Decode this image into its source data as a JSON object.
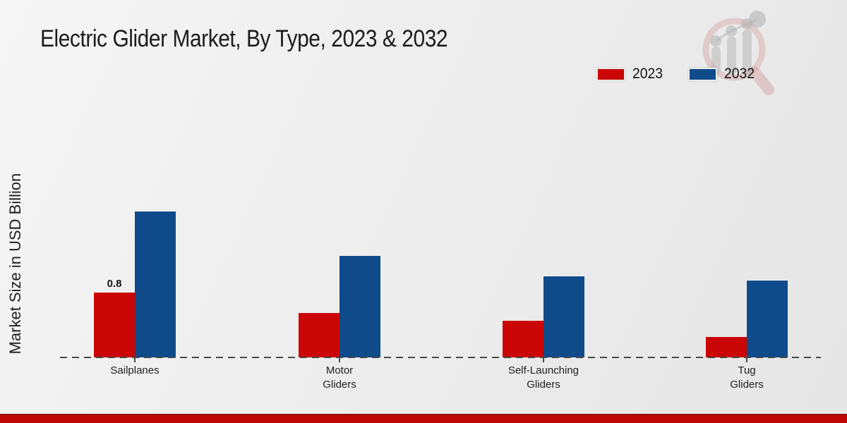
{
  "header": {
    "title": "Electric Glider Market, By Type, 2023 & 2032"
  },
  "axes": {
    "y_label": "Market Size in USD Billion"
  },
  "legend": {
    "position": "top-right",
    "items": [
      {
        "label": "2023",
        "color": "#cb0606"
      },
      {
        "label": "2032",
        "color": "#0f4b8a"
      }
    ]
  },
  "watermark": {
    "name": "magnifier-bar-chart-logo",
    "ring_color": "#d9a9a9",
    "bars_color": "#c4c4c4"
  },
  "footer": {
    "band_color": "#c00707",
    "band_edge_color": "#951010"
  },
  "chart_data": {
    "type": "bar",
    "title": "Electric Glider Market, By Type, 2023 & 2032",
    "xlabel": "",
    "ylabel": "Market Size in USD Billion",
    "categories": [
      "Sailplanes",
      "Motor Gliders",
      "Self-Launching Gliders",
      "Tug Gliders"
    ],
    "category_label_lines": [
      [
        "Sailplanes"
      ],
      [
        "Motor",
        "Gliders"
      ],
      [
        "Self-Launching",
        "Gliders"
      ],
      [
        "Tug",
        "Gliders"
      ]
    ],
    "series": [
      {
        "name": "2023",
        "color": "#cb0606",
        "values": [
          0.8,
          0.55,
          0.45,
          0.25
        ]
      },
      {
        "name": "2032",
        "color": "#0f4b8a",
        "values": [
          1.8,
          1.25,
          1.0,
          0.95
        ]
      }
    ],
    "data_labels": [
      {
        "series": "2023",
        "category_index": 0,
        "text": "0.8"
      }
    ],
    "ylim": [
      0,
      2.0
    ],
    "grid": false,
    "legend_position": "top-right",
    "baseline_style": "dashed",
    "axis_color": "#4a4a4a"
  }
}
